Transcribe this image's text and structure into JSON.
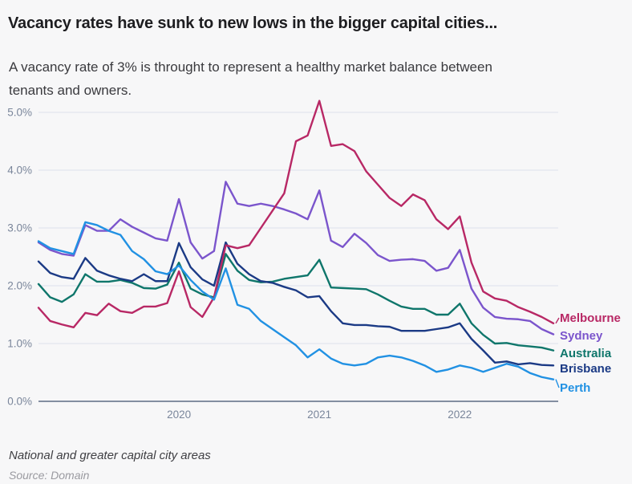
{
  "header": {
    "title": "Vacancy rates have sunk to new lows in the bigger capital cities...",
    "subtitle_line1": "A vacancy rate of 3% is throught to represent a healthy market balance between",
    "subtitle_line2": "tenants and owners."
  },
  "chart_data": {
    "type": "line",
    "title": "Vacancy rates have sunk to new lows in the bigger capital cities...",
    "x_unit": "month",
    "x_start": "2019-01",
    "x_end": "2022-09",
    "xticks": [
      {
        "label": "2020",
        "index": 12
      },
      {
        "label": "2021",
        "index": 24
      },
      {
        "label": "2022",
        "index": 36
      }
    ],
    "yticks": [
      {
        "label": "0.0%",
        "value": 0
      },
      {
        "label": "1.0%",
        "value": 1
      },
      {
        "label": "2.0%",
        "value": 2
      },
      {
        "label": "3.0%",
        "value": 3
      },
      {
        "label": "4.0%",
        "value": 4
      },
      {
        "label": "5.0%",
        "value": 5
      }
    ],
    "ylim": [
      0,
      5.4
    ],
    "grid": "horizontal",
    "legend_position": "right-end-labels",
    "z_order": [
      "Sydney",
      "Australia",
      "Brisbane",
      "Melbourne",
      "Perth"
    ],
    "series": [
      {
        "name": "Melbourne",
        "color": "#b82865",
        "values": [
          1.62,
          1.39,
          1.33,
          1.28,
          1.53,
          1.49,
          1.69,
          1.56,
          1.53,
          1.64,
          1.64,
          1.7,
          2.25,
          1.63,
          1.46,
          1.8,
          2.7,
          2.65,
          2.7,
          3.0,
          3.3,
          3.6,
          4.5,
          4.6,
          5.2,
          4.42,
          4.45,
          4.33,
          3.98,
          3.75,
          3.52,
          3.38,
          3.58,
          3.48,
          3.15,
          2.98,
          3.2,
          2.4,
          1.9,
          1.78,
          1.74,
          1.63,
          1.55,
          1.46,
          1.35
        ]
      },
      {
        "name": "Sydney",
        "color": "#7b55cc",
        "values": [
          2.75,
          2.62,
          2.55,
          2.52,
          3.05,
          2.95,
          2.95,
          3.15,
          3.02,
          2.92,
          2.82,
          2.78,
          3.5,
          2.75,
          2.47,
          2.6,
          3.8,
          3.42,
          3.38,
          3.42,
          3.38,
          3.32,
          3.25,
          3.15,
          3.65,
          2.78,
          2.67,
          2.9,
          2.74,
          2.53,
          2.43,
          2.45,
          2.46,
          2.43,
          2.26,
          2.31,
          2.62,
          1.95,
          1.62,
          1.46,
          1.43,
          1.42,
          1.39,
          1.25,
          1.16
        ]
      },
      {
        "name": "Australia",
        "color": "#0f766b",
        "values": [
          2.03,
          1.8,
          1.72,
          1.85,
          2.2,
          2.07,
          2.07,
          2.1,
          2.05,
          1.96,
          1.95,
          2.02,
          2.4,
          1.95,
          1.85,
          1.8,
          2.55,
          2.26,
          2.1,
          2.06,
          2.07,
          2.12,
          2.15,
          2.18,
          2.45,
          1.97,
          1.96,
          1.95,
          1.94,
          1.85,
          1.74,
          1.64,
          1.6,
          1.6,
          1.5,
          1.5,
          1.69,
          1.35,
          1.15,
          1.0,
          1.01,
          0.97,
          0.95,
          0.93,
          0.88
        ]
      },
      {
        "name": "Brisbane",
        "color": "#1b3a85",
        "values": [
          2.42,
          2.22,
          2.15,
          2.12,
          2.48,
          2.26,
          2.18,
          2.12,
          2.08,
          2.2,
          2.08,
          2.08,
          2.74,
          2.32,
          2.11,
          2.0,
          2.75,
          2.38,
          2.2,
          2.08,
          2.05,
          1.98,
          1.92,
          1.8,
          1.82,
          1.56,
          1.35,
          1.32,
          1.32,
          1.3,
          1.29,
          1.22,
          1.22,
          1.22,
          1.25,
          1.28,
          1.35,
          1.08,
          0.88,
          0.67,
          0.69,
          0.64,
          0.66,
          0.63,
          0.62
        ]
      },
      {
        "name": "Perth",
        "color": "#2191e3",
        "values": [
          2.77,
          2.65,
          2.6,
          2.55,
          3.1,
          3.05,
          2.95,
          2.88,
          2.6,
          2.46,
          2.25,
          2.2,
          2.35,
          2.1,
          1.9,
          1.76,
          2.3,
          1.67,
          1.6,
          1.39,
          1.25,
          1.11,
          0.97,
          0.76,
          0.9,
          0.74,
          0.65,
          0.62,
          0.65,
          0.76,
          0.79,
          0.76,
          0.7,
          0.62,
          0.51,
          0.55,
          0.62,
          0.58,
          0.51,
          0.58,
          0.65,
          0.6,
          0.49,
          0.42,
          0.38
        ]
      }
    ],
    "colors": {
      "background": "#f7f7f8",
      "gridline": "#dde1eb",
      "axis_line": "#5d6c84",
      "tick_text": "#7a869b"
    }
  },
  "footer": {
    "note": "National and greater capital city areas",
    "source": "Source: Domain"
  }
}
